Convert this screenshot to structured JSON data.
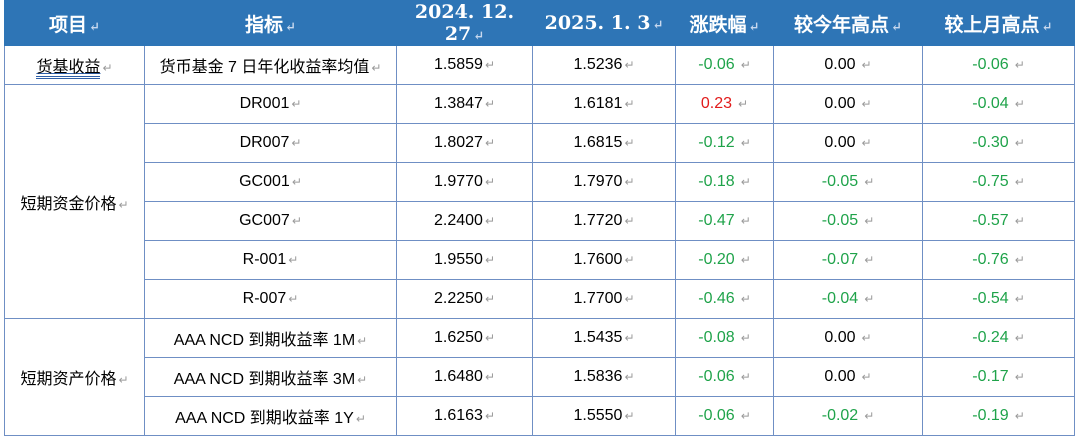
{
  "headers": [
    "项目",
    "指标",
    "2024. 12. 27",
    "2025. 1. 3",
    "涨跌幅",
    "较今年高点",
    "较上月高点"
  ],
  "return_mark": "↵",
  "rows": [
    {
      "category": "货基收益",
      "indicator": "货币基金 7 日年化收益率均值",
      "v1": "1.5859",
      "v2": "1.5236",
      "chg": "-0.06",
      "vs_year": "0.00",
      "vs_month": "-0.06"
    },
    {
      "category": "短期资金价格",
      "indicator": "DR001",
      "v1": "1.3847",
      "v2": "1.6181",
      "chg": "0.23",
      "vs_year": "0.00",
      "vs_month": "-0.04"
    },
    {
      "indicator": "DR007",
      "v1": "1.8027",
      "v2": "1.6815",
      "chg": "-0.12",
      "vs_year": "0.00",
      "vs_month": "-0.30"
    },
    {
      "indicator": "GC001",
      "v1": "1.9770",
      "v2": "1.7970",
      "chg": "-0.18",
      "vs_year": "-0.05",
      "vs_month": "-0.75"
    },
    {
      "indicator": "GC007",
      "v1": "2.2400",
      "v2": "1.7720",
      "chg": "-0.47",
      "vs_year": "-0.05",
      "vs_month": "-0.57"
    },
    {
      "indicator": "R-001",
      "v1": "1.9550",
      "v2": "1.7600",
      "chg": "-0.20",
      "vs_year": "-0.07",
      "vs_month": "-0.76"
    },
    {
      "indicator": "R-007",
      "v1": "2.2250",
      "v2": "1.7700",
      "chg": "-0.46",
      "vs_year": "-0.04",
      "vs_month": "-0.54"
    },
    {
      "category": "短期资产价格",
      "indicator": "AAA NCD 到期收益率 1M",
      "v1": "1.6250",
      "v2": "1.5435",
      "chg": "-0.08",
      "vs_year": "0.00",
      "vs_month": "-0.24"
    },
    {
      "indicator": "AAA NCD 到期收益率 3M",
      "v1": "1.6480",
      "v2": "1.5836",
      "chg": "-0.06",
      "vs_year": "0.00",
      "vs_month": "-0.17"
    },
    {
      "indicator": "AAA NCD 到期收益率 1Y",
      "v1": "1.6163",
      "v2": "1.5550",
      "chg": "-0.06",
      "vs_year": "-0.02",
      "vs_month": "-0.19"
    }
  ],
  "colors": {
    "header_bg": "#2e75b6",
    "negative": "#1fa34a",
    "positive": "#e11b1b",
    "border": "#6f8fc4"
  }
}
